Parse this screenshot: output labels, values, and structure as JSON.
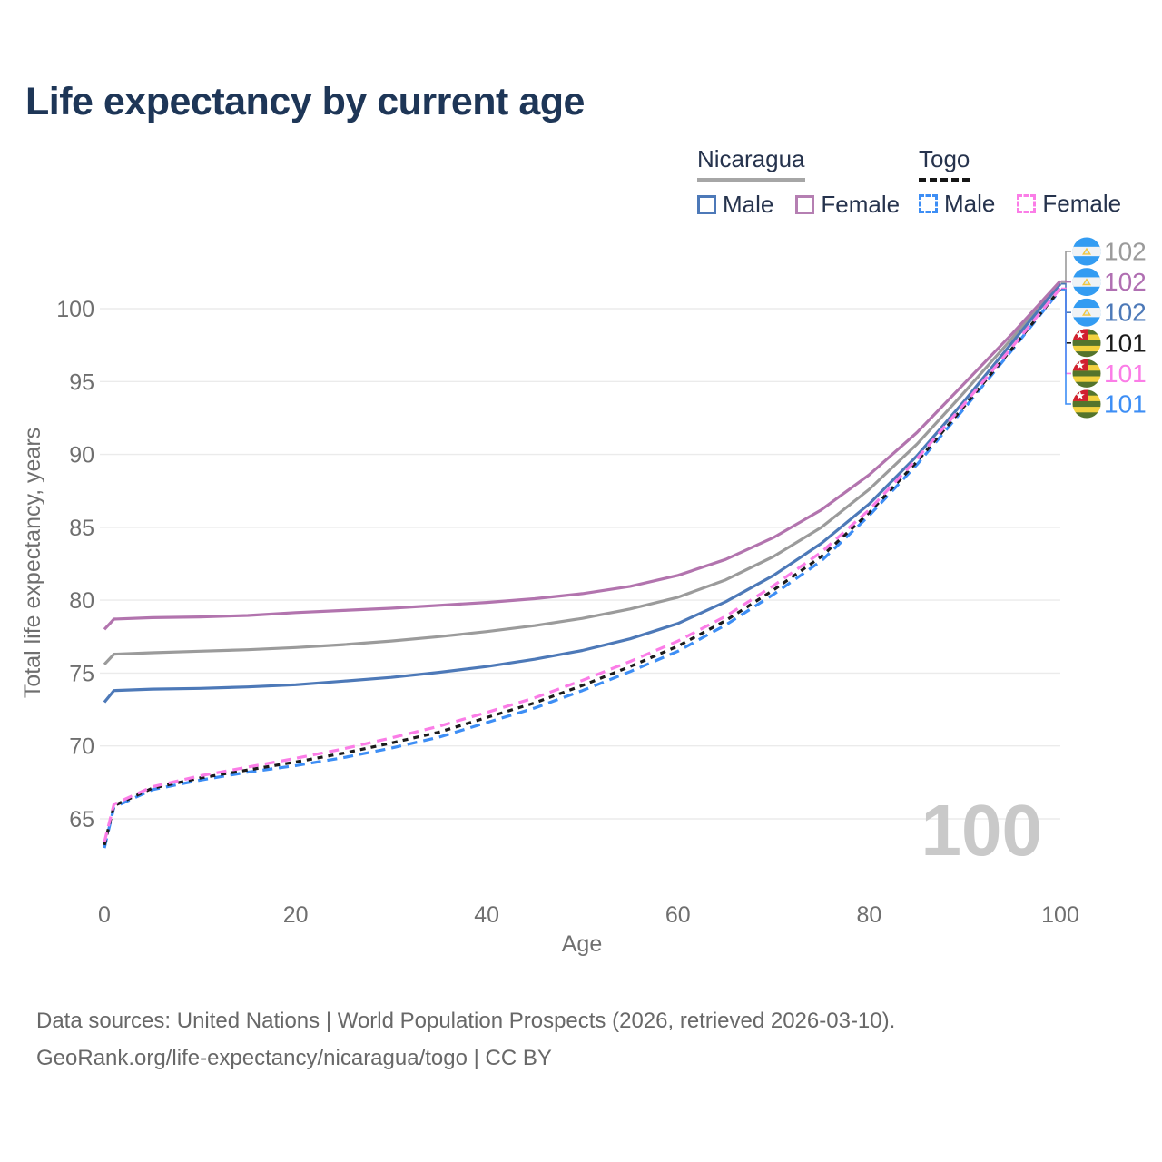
{
  "page": {
    "title": "Life expectancy by current age"
  },
  "legend": {
    "groups": [
      {
        "label": "Nicaragua",
        "line_style": "solid",
        "underline_color": "#a6a6a6"
      },
      {
        "label": "Togo",
        "line_style": "dashed",
        "underline_color": "#161616"
      }
    ],
    "items": [
      {
        "country": "Nicaragua",
        "label": "Male",
        "color": "#4d79b8",
        "style": "solid"
      },
      {
        "country": "Nicaragua",
        "label": "Female",
        "color": "#b57fb2",
        "style": "solid"
      },
      {
        "country": "Togo",
        "label": "Male",
        "color": "#3d8ef5",
        "style": "dashed"
      },
      {
        "country": "Togo",
        "label": "Female",
        "color": "#fb7de7",
        "style": "dashed"
      }
    ]
  },
  "chart_data": {
    "type": "line",
    "title": "Life expectancy by current age",
    "xlabel": "Age",
    "ylabel": "Total life expectancy, years",
    "xticks": [
      0,
      20,
      40,
      60,
      80,
      100
    ],
    "yticks": [
      65,
      70,
      75,
      80,
      85,
      90,
      95,
      100
    ],
    "xlim": [
      0,
      100
    ],
    "ylim": [
      63,
      103
    ],
    "grid": "horizontal",
    "legend_position": "top-right",
    "watermark": "100",
    "ages": [
      0,
      1,
      5,
      10,
      15,
      20,
      25,
      30,
      35,
      40,
      45,
      50,
      55,
      60,
      65,
      70,
      75,
      80,
      85,
      90,
      95,
      100
    ],
    "series": [
      {
        "name": "Nicaragua All",
        "country": "Nicaragua",
        "sex": "all",
        "flag": "nicaragua",
        "color": "#9b9b9b",
        "dash": "",
        "end_label": "102",
        "end_label_color": "#9b9b9b",
        "values": [
          75.6,
          76.3,
          76.4,
          76.5,
          76.6,
          76.75,
          76.95,
          77.2,
          77.5,
          77.85,
          78.25,
          78.75,
          79.4,
          80.2,
          81.4,
          83.0,
          85.0,
          87.6,
          90.7,
          94.3,
          98.0,
          101.8
        ]
      },
      {
        "name": "Nicaragua Female",
        "country": "Nicaragua",
        "sex": "female",
        "flag": "nicaragua",
        "color": "#b274ae",
        "dash": "",
        "end_label": "102",
        "end_label_color": "#b06fb2",
        "values": [
          78.0,
          78.7,
          78.8,
          78.85,
          78.95,
          79.15,
          79.3,
          79.45,
          79.65,
          79.85,
          80.1,
          80.45,
          80.95,
          81.7,
          82.8,
          84.3,
          86.2,
          88.6,
          91.5,
          94.9,
          98.3,
          101.9
        ]
      },
      {
        "name": "Nicaragua Male",
        "country": "Nicaragua",
        "sex": "male",
        "flag": "nicaragua",
        "color": "#4d79b8",
        "dash": "",
        "end_label": "102",
        "end_label_color": "#4d79b8",
        "values": [
          73.0,
          73.8,
          73.9,
          73.95,
          74.05,
          74.2,
          74.45,
          74.7,
          75.05,
          75.45,
          75.95,
          76.55,
          77.35,
          78.4,
          79.9,
          81.7,
          83.9,
          86.6,
          89.9,
          93.7,
          97.7,
          101.7
        ]
      },
      {
        "name": "Togo All",
        "country": "Togo",
        "sex": "all",
        "flag": "togo",
        "color": "#1b1b1b",
        "dash": "6 6",
        "end_label": "101",
        "end_label_color": "#1b1b1b",
        "values": [
          63.2,
          65.9,
          67.1,
          67.8,
          68.35,
          68.9,
          69.5,
          70.2,
          70.95,
          71.95,
          72.95,
          74.15,
          75.45,
          76.85,
          78.6,
          80.7,
          83.0,
          86.0,
          89.5,
          93.35,
          97.3,
          101.35
        ]
      },
      {
        "name": "Togo Female",
        "country": "Togo",
        "sex": "female",
        "flag": "togo",
        "color": "#fb7de7",
        "dash": "11 7",
        "end_label": "101",
        "end_label_color": "#fb7de7",
        "values": [
          63.4,
          66.0,
          67.2,
          67.95,
          68.55,
          69.15,
          69.8,
          70.55,
          71.35,
          72.3,
          73.3,
          74.5,
          75.8,
          77.2,
          78.9,
          81.0,
          83.3,
          86.2,
          89.7,
          93.5,
          97.4,
          101.4
        ]
      },
      {
        "name": "Togo Male",
        "country": "Togo",
        "sex": "male",
        "flag": "togo",
        "color": "#3d8ef5",
        "dash": "11 7",
        "end_label": "101",
        "end_label_color": "#3d8ef5",
        "values": [
          63.0,
          65.8,
          67.0,
          67.65,
          68.2,
          68.65,
          69.2,
          69.85,
          70.6,
          71.6,
          72.6,
          73.8,
          75.1,
          76.5,
          78.3,
          80.4,
          82.7,
          85.8,
          89.3,
          93.2,
          97.2,
          101.3
        ]
      }
    ],
    "colors": {
      "grid": "#ebebeb",
      "tick_text": "#6f6f6f",
      "watermark": "#c9c9c9",
      "title": "#1e3657",
      "flag_nicaragua_blue": "#339cf2",
      "flag_nicaragua_white": "#f0f3f6",
      "flag_togo_green": "#54742c",
      "flag_togo_yellow": "#f2d13e",
      "flag_togo_red": "#d11f2f"
    }
  },
  "footer": {
    "line1": "Data sources: United Nations | World Population Prospects (2026, retrieved 2026-03-10).",
    "line2": "GeoRank.org/life-expectancy/nicaragua/togo | CC BY"
  }
}
